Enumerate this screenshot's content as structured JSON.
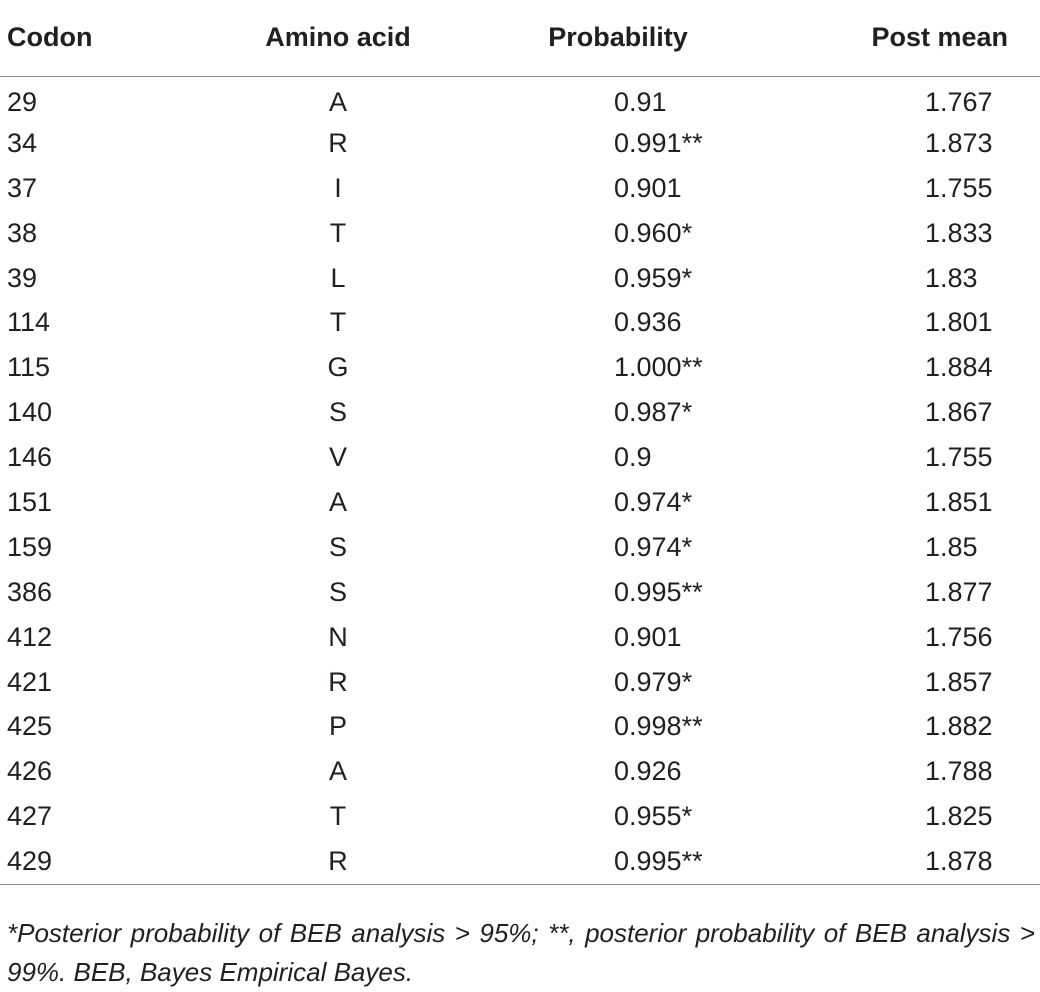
{
  "table": {
    "headers": [
      "Codon",
      "Amino acid",
      "Probability",
      "Post mean"
    ],
    "rows": [
      [
        "29",
        "A",
        "0.91",
        "1.767"
      ],
      [
        "34",
        "R",
        "0.991**",
        "1.873"
      ],
      [
        "37",
        "I",
        "0.901",
        "1.755"
      ],
      [
        "38",
        "T",
        "0.960*",
        "1.833"
      ],
      [
        "39",
        "L",
        "0.959*",
        "1.83"
      ],
      [
        "114",
        "T",
        "0.936",
        "1.801"
      ],
      [
        "115",
        "G",
        "1.000**",
        "1.884"
      ],
      [
        "140",
        "S",
        "0.987*",
        "1.867"
      ],
      [
        "146",
        "V",
        "0.9",
        "1.755"
      ],
      [
        "151",
        "A",
        "0.974*",
        "1.851"
      ],
      [
        "159",
        "S",
        "0.974*",
        "1.85"
      ],
      [
        "386",
        "S",
        "0.995**",
        "1.877"
      ],
      [
        "412",
        "N",
        "0.901",
        "1.756"
      ],
      [
        "421",
        "R",
        "0.979*",
        "1.857"
      ],
      [
        "425",
        "P",
        "0.998**",
        "1.882"
      ],
      [
        "426",
        "A",
        "0.926",
        "1.788"
      ],
      [
        "427",
        "T",
        "0.955*",
        "1.825"
      ],
      [
        "429",
        "R",
        "0.995**",
        "1.878"
      ]
    ]
  },
  "footnote": "*Posterior probability of BEB analysis > 95%; **, posterior probability of BEB analysis > 99%. BEB, Bayes Empirical Bayes."
}
